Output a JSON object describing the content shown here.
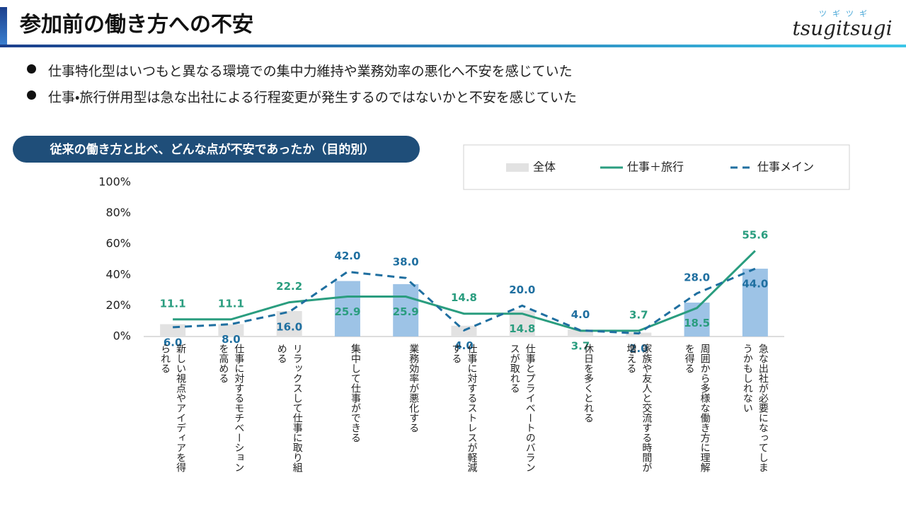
{
  "header": {
    "title": "参加前の働き方への不安",
    "logo": "tsugitsugi",
    "logo_kana": "ツギツギ"
  },
  "bullets": [
    "仕事特化型はいつもと異なる環境での集中力維持や業務効率の悪化へ不安を感じていた",
    "仕事・旅行併用型は急な出社による行程変更が発生するのではないかと不安を感じていた"
  ],
  "chart_data": {
    "type": "combo",
    "title": "従来の働き方と比べ、どんな点が不安であったか（目的別）",
    "categories": [
      "新しい視点やアイディアを得られる",
      "仕事に対するモチベーションを高める",
      "リラックスして仕事に取り組める",
      "集中して仕事ができる",
      "業務効率が悪化する",
      "仕事に対するストレスが軽減する",
      "仕事とプライベートのバランスが取れる",
      "休日を多くとれる",
      "家族や友人と交流する時間が増える",
      "周囲から多様な働き方に理解を得る",
      "急な出社が必要になってしまうかもしれない"
    ],
    "series": [
      {
        "name": "全体",
        "type": "bar",
        "colors": [
          "#e2e2e2",
          "#e2e2e2",
          "#e2e2e2",
          "#9dc3e6",
          "#9dc3e6",
          "#e2e2e2",
          "#e2e2e2",
          "#e2e2e2",
          "#e2e2e2",
          "#9dc3e6",
          "#9dc3e6"
        ],
        "values": [
          8,
          8,
          16.5,
          36,
          34,
          7,
          17,
          4.5,
          2.5,
          22,
          44
        ]
      },
      {
        "name": "仕事＋旅行",
        "type": "line",
        "dashed": false,
        "color": "#2a9d7f",
        "values": [
          11.1,
          11.1,
          22.2,
          25.9,
          25.9,
          14.8,
          14.8,
          3.7,
          3.7,
          18.5,
          55.6
        ],
        "value_labels": [
          "11.1",
          "11.1",
          "22.2",
          "25.9",
          "25.9",
          "14.8",
          "14.8",
          "3.7",
          "3.7",
          "18.5",
          "55.6"
        ]
      },
      {
        "name": "仕事メイン",
        "type": "line",
        "dashed": true,
        "color": "#1f6fa0",
        "values": [
          6.0,
          8.0,
          16.0,
          42.0,
          38.0,
          4.0,
          20.0,
          4.0,
          2.0,
          28.0,
          44.0
        ],
        "value_labels": [
          "6.0",
          "8.0",
          "16.0",
          "42.0",
          "38.0",
          "4.0",
          "20.0",
          "4.0",
          "2.0",
          "28.0",
          "44.0"
        ]
      }
    ],
    "ylim": [
      0,
      100
    ],
    "yticks": [
      {
        "value": 0,
        "label": "0%"
      },
      {
        "value": 20,
        "label": "20%"
      },
      {
        "value": 40,
        "label": "40%"
      },
      {
        "value": 60,
        "label": "60%"
      },
      {
        "value": 80,
        "label": "80%"
      },
      {
        "value": 100,
        "label": "100%"
      }
    ],
    "legend": "top-right"
  }
}
